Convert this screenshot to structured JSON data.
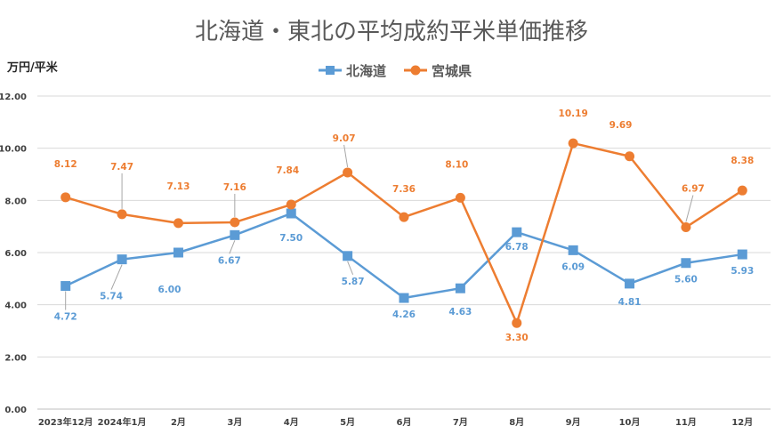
{
  "chart_data": {
    "type": "line",
    "title": "北海道・東北の平均成約平米単価推移",
    "ylabel": "万円/平米",
    "xlabel": "",
    "ylim": [
      0,
      12
    ],
    "yticks": [
      "0.00",
      "2.00",
      "4.00",
      "6.00",
      "8.00",
      "10.00",
      "12.00"
    ],
    "ytick_values": [
      0,
      2,
      4,
      6,
      8,
      10,
      12
    ],
    "categories": [
      "2023年12月",
      "2024年1月",
      "2月",
      "3月",
      "4月",
      "5月",
      "6月",
      "7月",
      "8月",
      "9月",
      "10月",
      "11月",
      "12月"
    ],
    "grid": true,
    "legend_position": "top",
    "series": [
      {
        "name": "北海道",
        "marker": "square",
        "color": "#5B9BD5",
        "values": [
          4.72,
          5.74,
          6.0,
          6.67,
          7.5,
          5.87,
          4.26,
          4.63,
          6.78,
          6.09,
          4.81,
          5.6,
          5.93
        ],
        "labels": [
          "4.72",
          "5.74",
          "6.00",
          "6.67",
          "7.50",
          "5.87",
          "4.26",
          "4.63",
          "6.78",
          "6.09",
          "4.81",
          "5.60",
          "5.93"
        ]
      },
      {
        "name": "宮城県",
        "marker": "circle",
        "color": "#ED7D31",
        "values": [
          8.12,
          7.47,
          7.13,
          7.16,
          7.84,
          9.07,
          7.36,
          8.1,
          3.3,
          10.19,
          9.69,
          6.97,
          8.38
        ],
        "labels": [
          "8.12",
          "7.47",
          "7.13",
          "7.16",
          "7.84",
          "9.07",
          "7.36",
          "8.10",
          "3.30",
          "10.19",
          "9.69",
          "6.97",
          "8.38"
        ]
      }
    ]
  }
}
